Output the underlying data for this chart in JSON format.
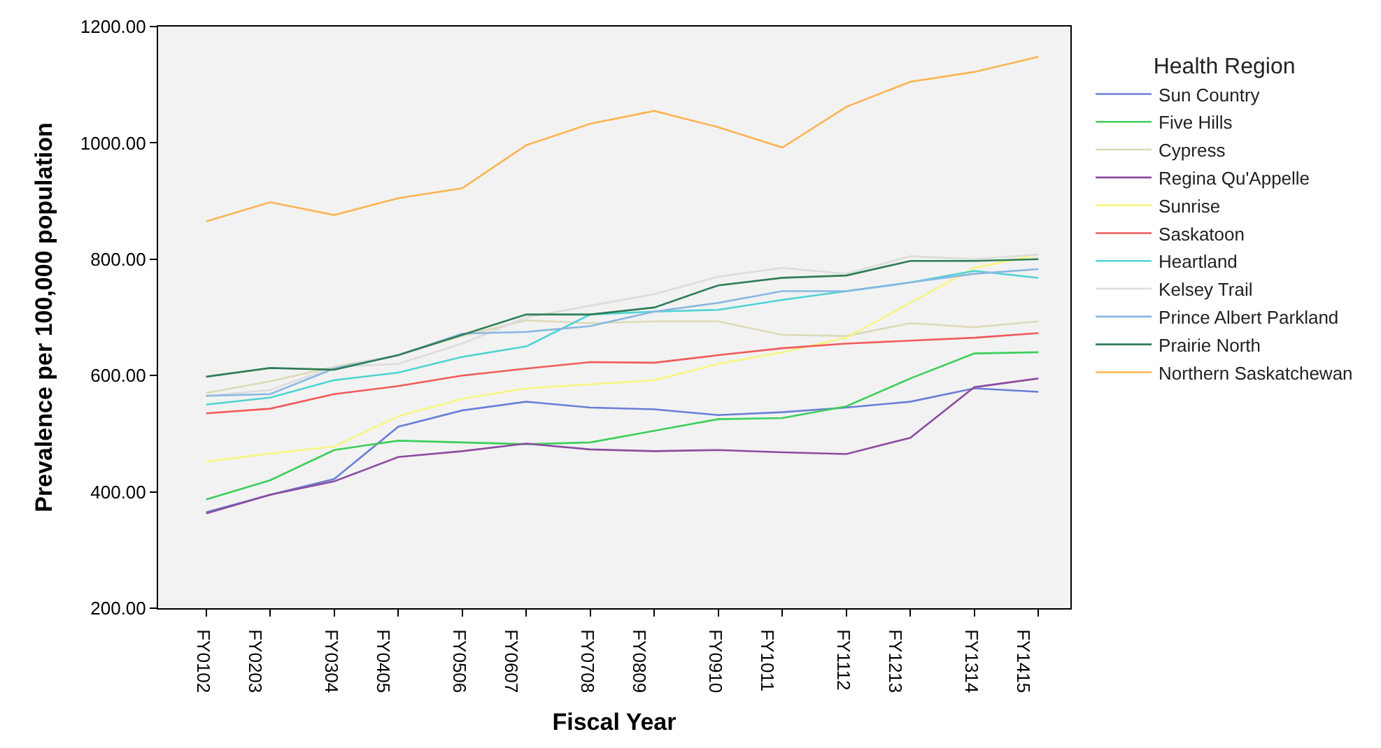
{
  "chart_data": {
    "type": "line",
    "xlabel": "Fiscal Year",
    "ylabel": "Prevalence per 100,000 population",
    "legend_title": "Health Region",
    "categories": [
      "FY0102",
      "FY0203",
      "FY0304",
      "FY0405",
      "FY0506",
      "FY0607",
      "FY0708",
      "FY0809",
      "FY0910",
      "FY1011",
      "FY1112",
      "FY1213",
      "FY1314",
      "FY1415"
    ],
    "ylim": [
      200,
      1200
    ],
    "yticks": [
      {
        "value": 200,
        "label": "200.00"
      },
      {
        "value": 400,
        "label": "400.00"
      },
      {
        "value": 600,
        "label": "600.00"
      },
      {
        "value": 800,
        "label": "800.00"
      },
      {
        "value": 1000,
        "label": "1000.00"
      },
      {
        "value": 1200,
        "label": "1200.00"
      }
    ],
    "grid": false,
    "legend": "right",
    "marker": "none",
    "line_style": "solid",
    "series": [
      {
        "name": "Sun Country",
        "color": "#6b7fd7",
        "values": [
          365,
          395,
          422,
          512,
          540,
          555,
          545,
          542,
          532,
          537,
          545,
          555,
          578,
          572
        ]
      },
      {
        "name": "Five Hills",
        "color": "#3ccf5a",
        "values": [
          387,
          420,
          472,
          488,
          485,
          482,
          485,
          505,
          525,
          527,
          547,
          595,
          638,
          640
        ]
      },
      {
        "name": "Cypress",
        "color": "#ddd9b8",
        "values": [
          570,
          590,
          615,
          635,
          668,
          695,
          690,
          693,
          693,
          670,
          668,
          690,
          683,
          693
        ]
      },
      {
        "name": "Regina Qu'Appelle",
        "color": "#8d4ba0",
        "values": [
          363,
          395,
          418,
          460,
          470,
          483,
          473,
          470,
          472,
          468,
          465,
          493,
          580,
          595
        ]
      },
      {
        "name": "Sunrise",
        "color": "#f8f580",
        "values": [
          452,
          466,
          478,
          530,
          560,
          578,
          585,
          592,
          620,
          640,
          665,
          725,
          785,
          808
        ]
      },
      {
        "name": "Saskatoon",
        "color": "#f25a5a",
        "values": [
          535,
          543,
          568,
          582,
          600,
          612,
          623,
          622,
          635,
          647,
          655,
          660,
          665,
          673
        ]
      },
      {
        "name": "Heartland",
        "color": "#4fd3d3",
        "values": [
          550,
          562,
          592,
          605,
          632,
          650,
          705,
          710,
          713,
          730,
          745,
          760,
          780,
          768
        ]
      },
      {
        "name": "Kelsey Trail",
        "color": "#dcdcdc",
        "values": [
          565,
          575,
          615,
          620,
          655,
          700,
          720,
          740,
          770,
          785,
          775,
          805,
          800,
          808
        ]
      },
      {
        "name": "Prince Albert Parkland",
        "color": "#88b7e3",
        "values": [
          565,
          568,
          612,
          635,
          672,
          675,
          685,
          710,
          725,
          745,
          745,
          760,
          775,
          783
        ]
      },
      {
        "name": "Prairie North",
        "color": "#2e7d57",
        "values": [
          598,
          613,
          610,
          635,
          670,
          705,
          705,
          717,
          755,
          768,
          772,
          797,
          797,
          800
        ]
      },
      {
        "name": "Northern Saskatchewan",
        "color": "#fbb450",
        "values": [
          865,
          898,
          876,
          905,
          922,
          996,
          1033,
          1055,
          1027,
          992,
          1062,
          1105,
          1122,
          1148
        ]
      }
    ]
  }
}
